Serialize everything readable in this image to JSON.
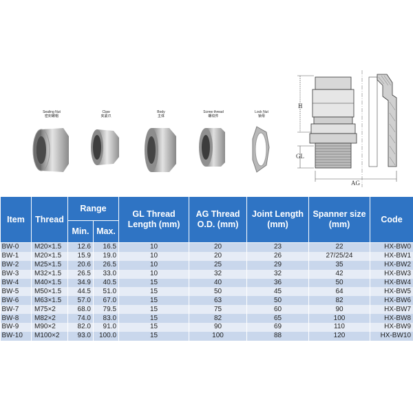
{
  "parts": [
    {
      "en": "Sealing Nut",
      "zh": "密封螺帽"
    },
    {
      "en": "Claw",
      "zh": "夹紧爪"
    },
    {
      "en": "Body",
      "zh": "主体"
    },
    {
      "en": "Screw thread",
      "zh": "螺纹件"
    },
    {
      "en": "Lock Nut",
      "zh": "锁母"
    }
  ],
  "drawing": {
    "h_label": "H",
    "gl_label": "GL",
    "ag_label": "AG"
  },
  "table": {
    "headers": {
      "item": "Item",
      "thread": "Thread",
      "range": "Range",
      "min": "Min.",
      "max": "Max.",
      "gl": "GL Thread Length (mm)",
      "ag": "AG Thread O.D. (mm)",
      "joint": "Joint Length (mm)",
      "spanner": "Spanner size (mm)",
      "code": "Code"
    },
    "rows": [
      [
        "BW-0",
        "M20×1.5",
        "12.6",
        "16.5",
        "10",
        "20",
        "23",
        "22",
        "HX-BW0"
      ],
      [
        "BW-1",
        "M20×1.5",
        "15.9",
        "19.0",
        "10",
        "20",
        "26",
        "27/25/24",
        "HX-BW1"
      ],
      [
        "BW-2",
        "M25×1.5",
        "20.6",
        "26.5",
        "10",
        "25",
        "29",
        "35",
        "HX-BW2"
      ],
      [
        "BW-3",
        "M32×1.5",
        "26.5",
        "33.0",
        "10",
        "32",
        "32",
        "42",
        "HX-BW3"
      ],
      [
        "BW-4",
        "M40×1.5",
        "34.9",
        "40.5",
        "15",
        "40",
        "36",
        "50",
        "HX-BW4"
      ],
      [
        "BW-5",
        "M50×1.5",
        "44.5",
        "51.0",
        "15",
        "50",
        "45",
        "64",
        "HX-BW5"
      ],
      [
        "BW-6",
        "M63×1.5",
        "57.0",
        "67.0",
        "15",
        "63",
        "50",
        "82",
        "HX-BW6"
      ],
      [
        "BW-7",
        "M75×2",
        "68.0",
        "79.5",
        "15",
        "75",
        "60",
        "90",
        "HX-BW7"
      ],
      [
        "BW-8",
        "M82×2",
        "74.0",
        "83.0",
        "15",
        "82",
        "65",
        "100",
        "HX-BW8"
      ],
      [
        "BW-9",
        "M90×2",
        "82.0",
        "91.0",
        "15",
        "90",
        "69",
        "110",
        "HX-BW9"
      ],
      [
        "BW-10",
        "M100×2",
        "93.0",
        "100.0",
        "15",
        "100",
        "88",
        "120",
        "HX-BW10"
      ]
    ]
  }
}
